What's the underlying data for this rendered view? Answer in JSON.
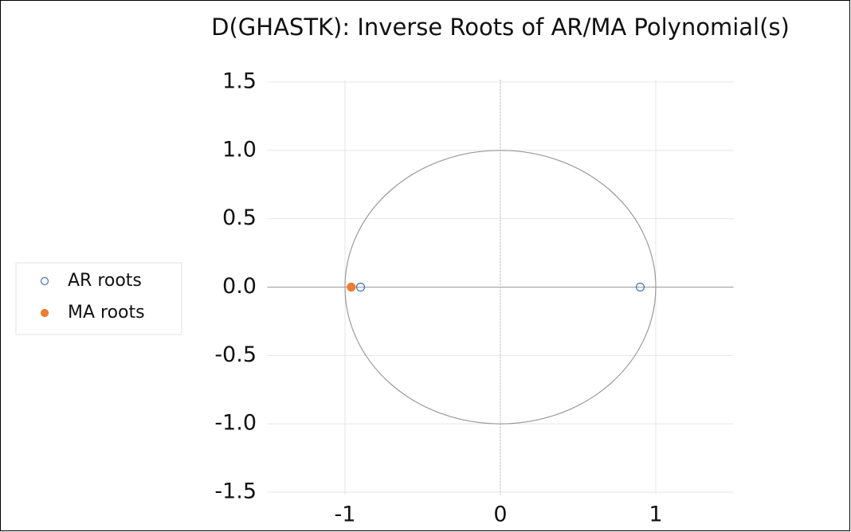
{
  "chart_data": {
    "type": "scatter",
    "title": "D(GHASTK): Inverse Roots of AR/MA Polynomial(s)",
    "series": [
      {
        "name": "AR roots",
        "color": "#4472c4",
        "marker": "open",
        "x": [
          -0.9,
          0.9
        ],
        "values": [
          0,
          0
        ]
      },
      {
        "name": "MA roots",
        "color": "#ed7d31",
        "marker": "filled",
        "x": [
          -0.96
        ],
        "values": [
          0
        ]
      }
    ],
    "xlim": [
      -1.5,
      1.5
    ],
    "xticks": [
      -1,
      0,
      1
    ],
    "ylim": [
      -1.5,
      1.5
    ],
    "yticks": [
      -1.5,
      {
        "value": -1,
        "label": "-1.0"
      },
      -0.5,
      {
        "value": 0,
        "label": "0.0"
      },
      0.5,
      {
        "value": 1,
        "label": "1.0"
      },
      1.5
    ],
    "grid": true,
    "legend": "left",
    "unit_circle": true
  }
}
